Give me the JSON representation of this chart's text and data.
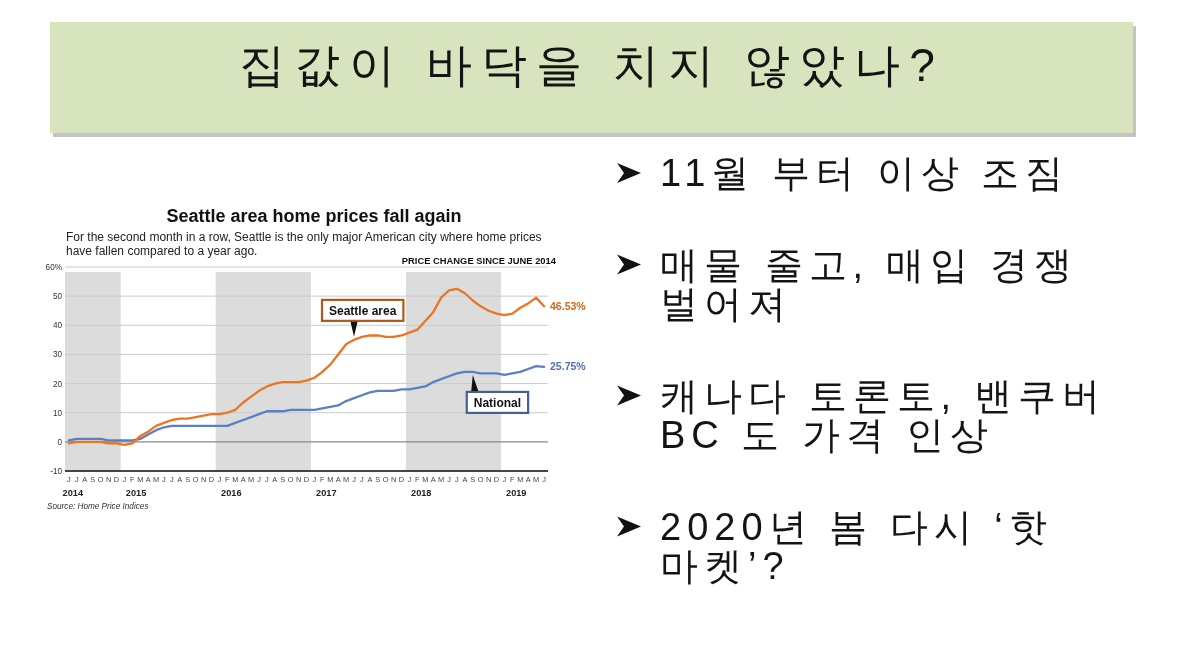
{
  "chart_data": [
    {
      "type": "other",
      "title": "집값이 바닥을 치지 않았나?"
    },
    {
      "type": "line",
      "title": "Seattle area home prices fall again",
      "subtitle": "For the second month in a row, Seattle is the only major American city where home prices have fallen compared to a year ago.",
      "ylabel": "PRICE CHANGE SINCE JUNE 2014",
      "annotations": [
        "Source: Home Price Indices"
      ],
      "categories": [
        "J",
        "J",
        "A",
        "S",
        "O",
        "N",
        "D",
        "J",
        "F",
        "M",
        "A",
        "M",
        "J",
        "J",
        "A",
        "S",
        "O",
        "N",
        "D",
        "J",
        "F",
        "M",
        "A",
        "M",
        "J",
        "J",
        "A",
        "S",
        "O",
        "N",
        "D",
        "J",
        "F",
        "M",
        "A",
        "M",
        "J",
        "J",
        "A",
        "S",
        "O",
        "N",
        "D",
        "J",
        "F",
        "M",
        "A",
        "M",
        "J",
        "J",
        "A",
        "S",
        "O",
        "N",
        "D",
        "J",
        "F",
        "M",
        "A",
        "M",
        "J"
      ],
      "series": [
        {
          "name": "Seattle area",
          "color": "#ec7521",
          "values": [
            -0.5,
            0,
            0,
            0,
            0,
            -0.5,
            -0.5,
            -1,
            -0.5,
            2,
            3.5,
            5.5,
            6.5,
            7.5,
            8,
            8,
            8.5,
            9,
            9.5,
            9.5,
            10,
            11,
            13.5,
            15.5,
            17.5,
            19,
            20,
            20.5,
            20.5,
            20.5,
            21,
            22,
            24,
            26.5,
            30,
            33.5,
            35,
            36,
            36.5,
            36.5,
            36,
            36,
            36.5,
            37.5,
            38.5,
            41.5,
            44.5,
            49.5,
            52,
            52.5,
            51,
            48.5,
            46.5,
            45,
            44,
            43.5,
            44,
            46,
            47.5,
            49.5,
            46.53
          ],
          "value_labels": [
            null,
            null,
            null,
            null,
            null,
            null,
            null,
            null,
            null,
            null,
            null,
            null,
            null,
            null,
            null,
            null,
            null,
            null,
            null,
            null,
            null,
            null,
            null,
            null,
            null,
            null,
            null,
            null,
            null,
            null,
            null,
            null,
            null,
            null,
            null,
            null,
            null,
            null,
            null,
            null,
            null,
            null,
            null,
            null,
            null,
            null,
            null,
            null,
            null,
            null,
            null,
            null,
            null,
            null,
            null,
            null,
            null,
            null,
            null,
            null,
            "46.53%"
          ]
        },
        {
          "name": "National",
          "color": "#5a7fc6",
          "values": [
            0.5,
            1,
            1,
            1,
            1,
            0.5,
            0.5,
            0.5,
            0.5,
            1,
            2.5,
            4,
            5,
            5.5,
            5.5,
            5.5,
            5.5,
            5.5,
            5.5,
            5.5,
            5.5,
            6.5,
            7.5,
            8.5,
            9.5,
            10.5,
            10.5,
            10.5,
            11,
            11,
            11,
            11,
            11.5,
            12,
            12.5,
            14,
            15,
            16,
            17,
            17.5,
            17.5,
            17.5,
            18,
            18,
            18.5,
            19,
            20.5,
            21.5,
            22.5,
            23.5,
            24,
            24,
            23.5,
            23.5,
            23.5,
            23,
            23.5,
            24,
            25,
            26,
            25.75
          ],
          "value_labels": [
            null,
            null,
            null,
            null,
            null,
            null,
            null,
            null,
            null,
            null,
            null,
            null,
            null,
            null,
            null,
            null,
            null,
            null,
            null,
            null,
            null,
            null,
            null,
            null,
            null,
            null,
            null,
            null,
            null,
            null,
            null,
            null,
            null,
            null,
            null,
            null,
            null,
            null,
            null,
            null,
            null,
            null,
            null,
            null,
            null,
            null,
            null,
            null,
            null,
            null,
            null,
            null,
            null,
            null,
            null,
            null,
            null,
            null,
            null,
            null,
            "25.75%"
          ]
        }
      ],
      "x2lim": [
        "2014-06",
        "2019-07"
      ],
      "x2ticks": [
        {
          "value": "2014-07",
          "label": "2014"
        },
        {
          "value": "2015-03",
          "label": "2015"
        },
        {
          "value": "2016-03",
          "label": "2016"
        },
        {
          "value": "2017-03",
          "label": "2017"
        },
        {
          "value": "2018-03",
          "label": "2018"
        },
        {
          "value": "2019-03",
          "label": "2019"
        }
      ],
      "ylim": [
        -10,
        60
      ],
      "yticks": [
        -10,
        0,
        10,
        20,
        30,
        40,
        50,
        {
          "value": 60,
          "label": "60%"
        }
      ],
      "grid": "y",
      "marker": "none",
      "line_style": "solid",
      "bands": [
        {
          "axis": "x2",
          "from": "2014-06",
          "to": "2015-01",
          "color": "#dcdcdc"
        },
        {
          "axis": "x2",
          "from": "2016-01",
          "to": "2017-01",
          "color": "#dcdcdc"
        },
        {
          "axis": "x2",
          "from": "2018-01",
          "to": "2019-01",
          "color": "#dcdcdc"
        }
      ]
    },
    {
      "type": "other",
      "annotations": [
        "11월 부터 이상 조짐",
        "매물 줄고, 매입 경쟁 벌어져",
        "캐나다 토론토, 밴쿠버 BC 도 가격 인상",
        "2020년 봄 다시 ‘핫 마켓’?"
      ]
    }
  ]
}
